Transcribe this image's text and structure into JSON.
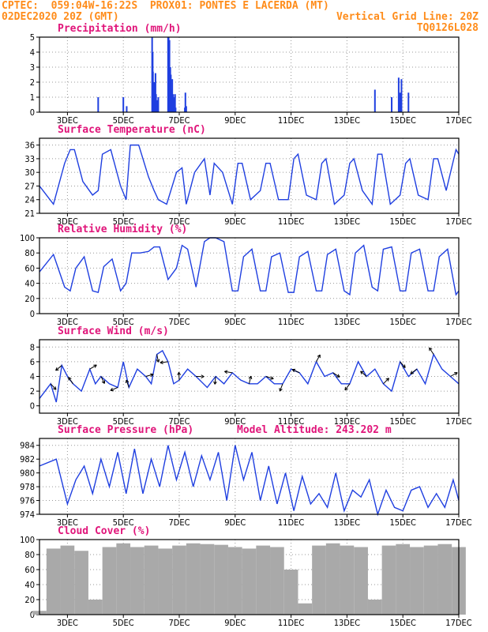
{
  "header": {
    "line1_left": "CPTEC:  059:04W-16:22S  PROX01: PONTES E LACERDA (MT)",
    "line2_left": "02DEC2020 20Z (GMT)",
    "line2_right": "Vertical Grid Line: 20Z",
    "line3_right": "TQ0126L028"
  },
  "x_ticks": [
    "3DEC",
    "5DEC",
    "7DEC",
    "9DEC",
    "11DEC",
    "13DEC",
    "15DEC",
    "17DEC"
  ],
  "colors": {
    "line": "#1f3fe0",
    "bar": "#1f3fe0",
    "cloud": "#a9a9a9",
    "title": "#e0157a",
    "header": "#ff8c1a",
    "arrow": "#000000"
  },
  "chart_data": [
    {
      "type": "bar",
      "title": "Precipitation (mm/h)",
      "ylim": [
        0,
        5
      ],
      "yticks": [
        0,
        1,
        2,
        3,
        4,
        5
      ],
      "x_unit": "days since 02DEC 20Z",
      "x": [
        2.1,
        3.0,
        3.12,
        4.03,
        4.05,
        4.06,
        4.1,
        4.13,
        4.15,
        4.17,
        4.2,
        4.21,
        4.22,
        4.25,
        4.6,
        4.62,
        4.65,
        4.68,
        4.7,
        4.72,
        4.75,
        4.78,
        4.8,
        4.83,
        4.85,
        4.87,
        5.2,
        5.22,
        5.25,
        12.0,
        12.6,
        12.85,
        12.9,
        12.95,
        13.2
      ],
      "values": [
        1.0,
        1.0,
        0.4,
        5.0,
        4.0,
        2.7,
        2.0,
        1.0,
        2.6,
        1.2,
        0.8,
        0.4,
        0.2,
        1.0,
        5.0,
        5.0,
        4.8,
        3.0,
        2.5,
        1.5,
        2.2,
        1.2,
        1.0,
        0.9,
        1.2,
        0.3,
        0.3,
        1.3,
        0.4,
        1.5,
        1.0,
        2.3,
        1.3,
        2.2,
        1.3
      ]
    },
    {
      "type": "line",
      "title": "Surface Temperature (nC)",
      "ylim": [
        21,
        37.5
      ],
      "yticks": [
        21,
        24,
        27,
        30,
        33,
        36
      ],
      "x_unit": "days since 02DEC 20Z",
      "x": [
        0,
        0.5,
        0.9,
        1.1,
        1.25,
        1.55,
        1.9,
        2.1,
        2.25,
        2.55,
        2.9,
        3.1,
        3.25,
        3.55,
        3.9,
        4.1,
        4.25,
        4.55,
        4.9,
        5.1,
        5.25,
        5.55,
        5.9,
        6.1,
        6.25,
        6.55,
        6.9,
        7.1,
        7.25,
        7.55,
        7.9,
        8.1,
        8.25,
        8.55,
        8.9,
        9.1,
        9.25,
        9.55,
        9.9,
        10.1,
        10.25,
        10.55,
        10.9,
        11.1,
        11.25,
        11.55,
        11.9,
        12.1,
        12.25,
        12.55,
        12.9,
        13.1,
        13.25,
        13.55,
        13.9,
        14.1,
        14.25,
        14.55,
        14.9,
        15.0
      ],
      "values": [
        27,
        23,
        32,
        35,
        35,
        28,
        25,
        26,
        34,
        35,
        27,
        24,
        36,
        36,
        29,
        26,
        24,
        23,
        30,
        31,
        23,
        30,
        33,
        25,
        32,
        30,
        23,
        32,
        32,
        24,
        26,
        32,
        32,
        24,
        24,
        33,
        34,
        25,
        24,
        32,
        33,
        23,
        25,
        32,
        33,
        26,
        23,
        34,
        34,
        23,
        25,
        32,
        33,
        25,
        24,
        33,
        33,
        26,
        35,
        34
      ]
    },
    {
      "type": "line",
      "title": "Relative Humidity (%)",
      "ylim": [
        0,
        100
      ],
      "yticks": [
        0,
        20,
        40,
        60,
        80,
        100
      ],
      "x_unit": "days since 02DEC 20Z",
      "x": [
        0,
        0.5,
        0.9,
        1.1,
        1.3,
        1.6,
        1.9,
        2.1,
        2.3,
        2.6,
        2.9,
        3.1,
        3.3,
        3.6,
        3.9,
        4.1,
        4.3,
        4.6,
        4.9,
        5.1,
        5.3,
        5.6,
        5.9,
        6.1,
        6.3,
        6.6,
        6.9,
        7.1,
        7.3,
        7.6,
        7.9,
        8.1,
        8.3,
        8.6,
        8.9,
        9.1,
        9.3,
        9.6,
        9.9,
        10.1,
        10.3,
        10.6,
        10.9,
        11.1,
        11.3,
        11.6,
        11.9,
        12.1,
        12.3,
        12.6,
        12.9,
        13.1,
        13.3,
        13.6,
        13.9,
        14.1,
        14.3,
        14.6,
        14.9,
        15.0
      ],
      "values": [
        55,
        78,
        35,
        30,
        60,
        75,
        30,
        28,
        62,
        72,
        30,
        40,
        80,
        80,
        82,
        88,
        88,
        45,
        60,
        90,
        85,
        35,
        95,
        100,
        100,
        95,
        30,
        30,
        75,
        85,
        30,
        30,
        75,
        80,
        28,
        28,
        75,
        82,
        30,
        30,
        78,
        85,
        30,
        25,
        80,
        90,
        35,
        30,
        85,
        88,
        30,
        30,
        80,
        85,
        30,
        30,
        75,
        85,
        25,
        30
      ]
    },
    {
      "type": "line",
      "title": "Surface Wind (m/s)",
      "ylim": [
        -1,
        9
      ],
      "yticks": [
        0,
        2,
        4,
        6,
        8
      ],
      "x_unit": "days since 02DEC 20Z",
      "x": [
        0,
        0.4,
        0.6,
        0.8,
        1.0,
        1.2,
        1.5,
        1.8,
        2.0,
        2.2,
        2.5,
        2.8,
        3.0,
        3.2,
        3.5,
        3.8,
        4.0,
        4.2,
        4.4,
        4.6,
        4.8,
        5.0,
        5.3,
        5.6,
        6.0,
        6.3,
        6.6,
        6.9,
        7.2,
        7.5,
        7.8,
        8.1,
        8.4,
        8.7,
        9.0,
        9.3,
        9.6,
        9.9,
        10.2,
        10.5,
        10.8,
        11.1,
        11.4,
        11.7,
        12.0,
        12.3,
        12.6,
        12.9,
        13.2,
        13.5,
        13.8,
        14.1,
        14.4,
        14.7,
        15.0
      ],
      "values": [
        1,
        3,
        0.5,
        5.5,
        4,
        3,
        2,
        5,
        3,
        4,
        3,
        2.5,
        6,
        2.5,
        5,
        4,
        3,
        7,
        7.5,
        6,
        3,
        3.5,
        5,
        4,
        2.5,
        4,
        3,
        4.5,
        3.5,
        3,
        3,
        4,
        3,
        3,
        5,
        4.5,
        3,
        6,
        4,
        4.5,
        3,
        3,
        6,
        4,
        5,
        3,
        2,
        6,
        4,
        5,
        3,
        7,
        5,
        4,
        3
      ]
    },
    {
      "type": "line",
      "title": "Surface Pressure (hPa)",
      "annotation": "Model Altitude: 243.202 m",
      "ylim": [
        974,
        985
      ],
      "yticks": [
        974,
        976,
        978,
        980,
        982,
        984
      ],
      "x_unit": "days since 02DEC 20Z",
      "x": [
        0,
        0.6,
        1.0,
        1.3,
        1.6,
        1.9,
        2.2,
        2.5,
        2.8,
        3.1,
        3.4,
        3.7,
        4.0,
        4.3,
        4.6,
        4.9,
        5.2,
        5.5,
        5.8,
        6.1,
        6.4,
        6.7,
        7.0,
        7.3,
        7.6,
        7.9,
        8.2,
        8.5,
        8.8,
        9.1,
        9.4,
        9.7,
        10.0,
        10.3,
        10.6,
        10.9,
        11.2,
        11.5,
        11.8,
        12.1,
        12.4,
        12.7,
        13.0,
        13.3,
        13.6,
        13.9,
        14.2,
        14.5,
        14.8,
        15.0
      ],
      "values": [
        981,
        982,
        975.5,
        979,
        981,
        977,
        982,
        978,
        983,
        977,
        983.5,
        977,
        982,
        978,
        984,
        979,
        983,
        978,
        982.5,
        979,
        983,
        976,
        984,
        979,
        983,
        976,
        981,
        975.5,
        980,
        974.5,
        979.5,
        975.5,
        977,
        975,
        980,
        974.5,
        977.5,
        976.5,
        979,
        974,
        977.5,
        975,
        974.5,
        977.5,
        978,
        975,
        977,
        975,
        979,
        976
      ]
    },
    {
      "type": "bar",
      "title": "Cloud Cover (%)",
      "ylim": [
        0,
        100
      ],
      "yticks": [
        0,
        20,
        40,
        60,
        80,
        100
      ],
      "x_unit": "days since 02DEC 20Z",
      "x": [
        0,
        0.5,
        1.0,
        1.5,
        2.0,
        2.5,
        3.0,
        3.5,
        4.0,
        4.5,
        5.0,
        5.5,
        6.0,
        6.5,
        7.0,
        7.5,
        8.0,
        8.5,
        9.0,
        9.5,
        10.0,
        10.5,
        11.0,
        11.5,
        12.0,
        12.5,
        13.0,
        13.5,
        14.0,
        14.5,
        15.0
      ],
      "values": [
        5,
        88,
        92,
        85,
        20,
        90,
        95,
        90,
        92,
        88,
        92,
        95,
        94,
        93,
        90,
        88,
        92,
        90,
        60,
        15,
        92,
        95,
        92,
        90,
        20,
        92,
        94,
        90,
        92,
        94,
        90
      ]
    }
  ]
}
